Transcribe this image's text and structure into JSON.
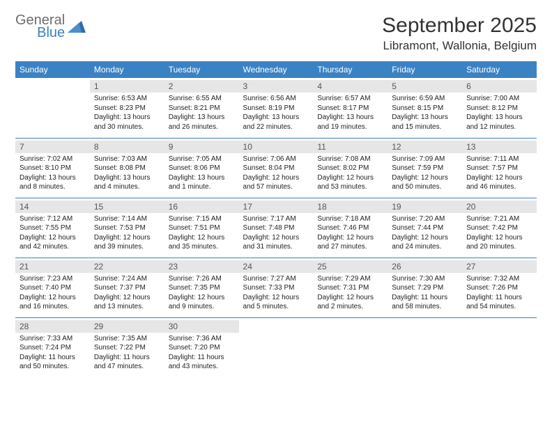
{
  "brand": {
    "name1": "General",
    "name2": "Blue"
  },
  "title": "September 2025",
  "location": "Libramont, Wallonia, Belgium",
  "colors": {
    "header_bg": "#3b82c4",
    "accent": "#3b7fbf",
    "daynum_bg": "#e6e6e6",
    "text": "#222"
  },
  "layout": {
    "cols": 7,
    "rows": 5,
    "first_weekday_index": 1
  },
  "weekdays": [
    "Sunday",
    "Monday",
    "Tuesday",
    "Wednesday",
    "Thursday",
    "Friday",
    "Saturday"
  ],
  "days": [
    {
      "n": 1,
      "sunrise": "6:53 AM",
      "sunset": "8:23 PM",
      "daylight": "13 hours and 30 minutes."
    },
    {
      "n": 2,
      "sunrise": "6:55 AM",
      "sunset": "8:21 PM",
      "daylight": "13 hours and 26 minutes."
    },
    {
      "n": 3,
      "sunrise": "6:56 AM",
      "sunset": "8:19 PM",
      "daylight": "13 hours and 22 minutes."
    },
    {
      "n": 4,
      "sunrise": "6:57 AM",
      "sunset": "8:17 PM",
      "daylight": "13 hours and 19 minutes."
    },
    {
      "n": 5,
      "sunrise": "6:59 AM",
      "sunset": "8:15 PM",
      "daylight": "13 hours and 15 minutes."
    },
    {
      "n": 6,
      "sunrise": "7:00 AM",
      "sunset": "8:12 PM",
      "daylight": "13 hours and 12 minutes."
    },
    {
      "n": 7,
      "sunrise": "7:02 AM",
      "sunset": "8:10 PM",
      "daylight": "13 hours and 8 minutes."
    },
    {
      "n": 8,
      "sunrise": "7:03 AM",
      "sunset": "8:08 PM",
      "daylight": "13 hours and 4 minutes."
    },
    {
      "n": 9,
      "sunrise": "7:05 AM",
      "sunset": "8:06 PM",
      "daylight": "13 hours and 1 minute."
    },
    {
      "n": 10,
      "sunrise": "7:06 AM",
      "sunset": "8:04 PM",
      "daylight": "12 hours and 57 minutes."
    },
    {
      "n": 11,
      "sunrise": "7:08 AM",
      "sunset": "8:02 PM",
      "daylight": "12 hours and 53 minutes."
    },
    {
      "n": 12,
      "sunrise": "7:09 AM",
      "sunset": "7:59 PM",
      "daylight": "12 hours and 50 minutes."
    },
    {
      "n": 13,
      "sunrise": "7:11 AM",
      "sunset": "7:57 PM",
      "daylight": "12 hours and 46 minutes."
    },
    {
      "n": 14,
      "sunrise": "7:12 AM",
      "sunset": "7:55 PM",
      "daylight": "12 hours and 42 minutes."
    },
    {
      "n": 15,
      "sunrise": "7:14 AM",
      "sunset": "7:53 PM",
      "daylight": "12 hours and 39 minutes."
    },
    {
      "n": 16,
      "sunrise": "7:15 AM",
      "sunset": "7:51 PM",
      "daylight": "12 hours and 35 minutes."
    },
    {
      "n": 17,
      "sunrise": "7:17 AM",
      "sunset": "7:48 PM",
      "daylight": "12 hours and 31 minutes."
    },
    {
      "n": 18,
      "sunrise": "7:18 AM",
      "sunset": "7:46 PM",
      "daylight": "12 hours and 27 minutes."
    },
    {
      "n": 19,
      "sunrise": "7:20 AM",
      "sunset": "7:44 PM",
      "daylight": "12 hours and 24 minutes."
    },
    {
      "n": 20,
      "sunrise": "7:21 AM",
      "sunset": "7:42 PM",
      "daylight": "12 hours and 20 minutes."
    },
    {
      "n": 21,
      "sunrise": "7:23 AM",
      "sunset": "7:40 PM",
      "daylight": "12 hours and 16 minutes."
    },
    {
      "n": 22,
      "sunrise": "7:24 AM",
      "sunset": "7:37 PM",
      "daylight": "12 hours and 13 minutes."
    },
    {
      "n": 23,
      "sunrise": "7:26 AM",
      "sunset": "7:35 PM",
      "daylight": "12 hours and 9 minutes."
    },
    {
      "n": 24,
      "sunrise": "7:27 AM",
      "sunset": "7:33 PM",
      "daylight": "12 hours and 5 minutes."
    },
    {
      "n": 25,
      "sunrise": "7:29 AM",
      "sunset": "7:31 PM",
      "daylight": "12 hours and 2 minutes."
    },
    {
      "n": 26,
      "sunrise": "7:30 AM",
      "sunset": "7:29 PM",
      "daylight": "11 hours and 58 minutes."
    },
    {
      "n": 27,
      "sunrise": "7:32 AM",
      "sunset": "7:26 PM",
      "daylight": "11 hours and 54 minutes."
    },
    {
      "n": 28,
      "sunrise": "7:33 AM",
      "sunset": "7:24 PM",
      "daylight": "11 hours and 50 minutes."
    },
    {
      "n": 29,
      "sunrise": "7:35 AM",
      "sunset": "7:22 PM",
      "daylight": "11 hours and 47 minutes."
    },
    {
      "n": 30,
      "sunrise": "7:36 AM",
      "sunset": "7:20 PM",
      "daylight": "11 hours and 43 minutes."
    }
  ],
  "labels": {
    "sunrise": "Sunrise:",
    "sunset": "Sunset:",
    "daylight": "Daylight:"
  }
}
